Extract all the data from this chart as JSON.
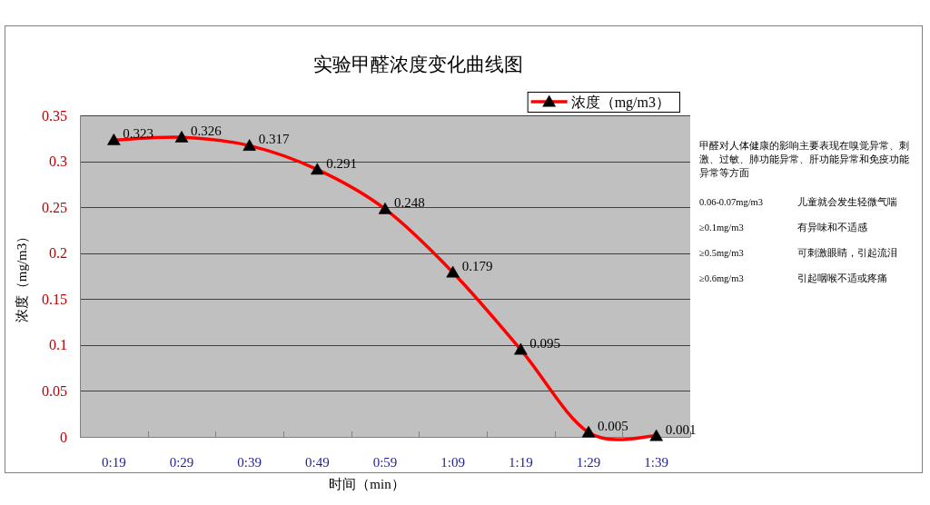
{
  "chart_data": {
    "type": "line",
    "title": "实验甲醛浓度变化曲线图",
    "xlabel": "时间（min）",
    "ylabel": "浓度（mg/m3）",
    "categories": [
      "0:19",
      "0:29",
      "0:39",
      "0:49",
      "0:59",
      "1:09",
      "1:19",
      "1:29",
      "1:39"
    ],
    "series": [
      {
        "name": "浓度（mg/m3）",
        "color": "#ff0000",
        "values": [
          0.323,
          0.326,
          0.317,
          0.291,
          0.248,
          0.179,
          0.095,
          0.005,
          0.001
        ]
      }
    ],
    "ylim": [
      0,
      0.35
    ],
    "yticks": [
      0,
      0.05,
      0.1,
      0.15,
      0.2,
      0.25,
      0.3,
      0.35
    ],
    "grid": "y",
    "legend": "top right",
    "marker": "triangle",
    "data_labels": true,
    "annotations": [
      "甲醛对人体健康的影响主要表现在嗅觉异常、刺激、过敏、肺功能异常、肝功能异常和免疫功能异常等方面",
      "0.06-0.07mg/m3",
      "儿童就会发生轻微气喘",
      "≥0.1mg/m3",
      "有异味和不适感",
      "≥0.5mg/m3",
      "可刺激眼睛，引起流泪",
      "≥0.6mg/m3",
      "引起咽喉不适或疼痛"
    ]
  }
}
